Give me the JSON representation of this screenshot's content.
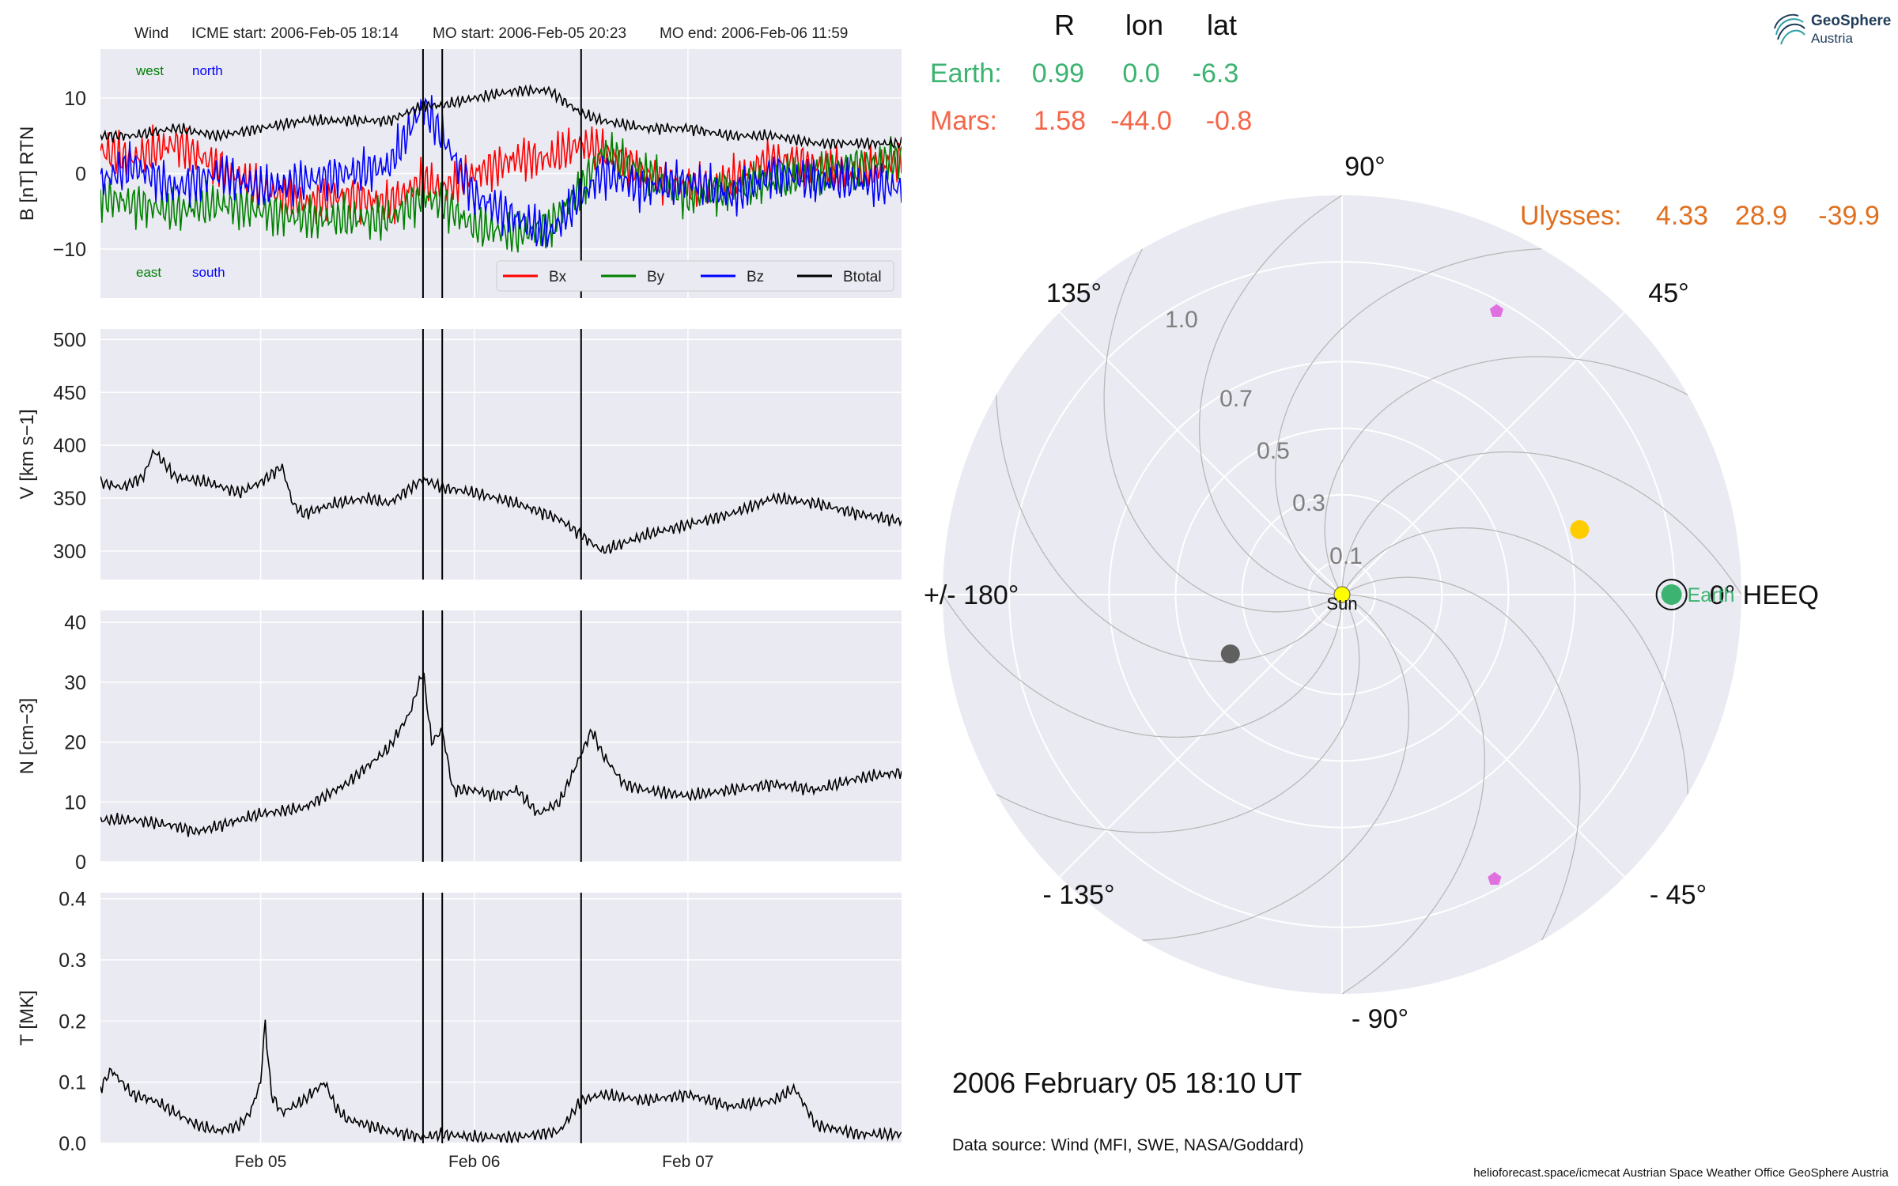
{
  "colors": {
    "panel_bg": "#eaeaf2",
    "grid": "#ffffff",
    "bx": "#ff0000",
    "by": "#008000",
    "bz": "#0000ff",
    "btotal": "#000000",
    "earth": "#3cb371",
    "mars": "#f4664a",
    "ulysses": "#e07020",
    "sun": "#ffff00",
    "polar_point_yellow": "#ffcc00",
    "polar_point_gray": "#606060",
    "polar_pentagon": "#e070e0",
    "spiral": "#b8b8b8",
    "polar_text_gray": "#7f7f7f"
  },
  "header": {
    "spacecraft": "Wind",
    "icme_start": "ICME start: 2006-Feb-05 18:14",
    "mo_start": "MO start: 2006-Feb-05 20:23",
    "mo_end": "MO end: 2006-Feb-06 11:59"
  },
  "xaxis": {
    "start_day": 4.25,
    "end_day": 8.0,
    "ticks": [
      5,
      6,
      7
    ],
    "tick_labels": [
      "Feb 05",
      "Feb 06",
      "Feb 07"
    ]
  },
  "event_lines": [
    5.76,
    5.85,
    6.5
  ],
  "chart_data": [
    {
      "type": "line",
      "ylabel": "B [nT] RTN",
      "ylim": [
        -16.5,
        16.5
      ],
      "yticks": [
        -10,
        0,
        10
      ],
      "ytick_labels": [
        "−10",
        "0",
        "10"
      ],
      "annotations": {
        "top_left": "west",
        "top_right": "north",
        "bottom_left": "east",
        "bottom_right": "south"
      },
      "legend": [
        "Bx",
        "By",
        "Bz",
        "Btotal"
      ],
      "legend_placement": "lower-right",
      "series": [
        {
          "name": "Bx",
          "color_key": "bx",
          "x": [
            4.25,
            4.4,
            4.6,
            4.8,
            5.0,
            5.2,
            5.4,
            5.6,
            5.76,
            5.85,
            6.0,
            6.2,
            6.35,
            6.5,
            6.6,
            6.8,
            7.0,
            7.2,
            7.4,
            7.6,
            7.8,
            8.0
          ],
          "y": [
            3,
            2,
            4,
            1,
            -2,
            -4,
            -3,
            -4,
            -1,
            -2,
            0,
            2,
            2,
            4,
            3,
            0,
            -2,
            -1,
            2,
            1,
            0,
            2
          ]
        },
        {
          "name": "By",
          "color_key": "by",
          "x": [
            4.25,
            4.4,
            4.6,
            4.8,
            5.0,
            5.2,
            5.4,
            5.6,
            5.76,
            5.85,
            6.0,
            6.2,
            6.35,
            6.5,
            6.6,
            6.8,
            7.0,
            7.2,
            7.4,
            7.6,
            7.8,
            8.0
          ],
          "y": [
            -3,
            -4,
            -5,
            -4,
            -5,
            -6,
            -6,
            -6,
            -3,
            -4,
            -7,
            -8,
            -7,
            -2,
            3,
            0,
            -3,
            -2,
            -1,
            0,
            1,
            2
          ]
        },
        {
          "name": "Bz",
          "color_key": "bz",
          "x": [
            4.25,
            4.4,
            4.6,
            4.8,
            5.0,
            5.2,
            5.4,
            5.6,
            5.76,
            5.85,
            6.0,
            6.2,
            6.35,
            6.5,
            6.6,
            6.8,
            7.0,
            7.2,
            7.4,
            7.6,
            7.8,
            8.0
          ],
          "y": [
            -1,
            1,
            -2,
            0,
            -2,
            -1,
            0,
            1,
            9,
            5,
            -3,
            -6,
            -8,
            -3,
            0,
            -2,
            -1,
            -3,
            0,
            -1,
            -1,
            -2
          ]
        },
        {
          "name": "Btotal",
          "color_key": "btotal",
          "x": [
            4.25,
            4.4,
            4.6,
            4.8,
            5.0,
            5.2,
            5.4,
            5.6,
            5.76,
            5.85,
            6.0,
            6.2,
            6.35,
            6.5,
            6.6,
            6.8,
            7.0,
            7.2,
            7.4,
            7.6,
            7.8,
            8.0
          ],
          "y": [
            5,
            5,
            6,
            5,
            6,
            7,
            7,
            7,
            9,
            9,
            10,
            11,
            11,
            8,
            7,
            6,
            6,
            5,
            5,
            4,
            4,
            4
          ]
        }
      ]
    },
    {
      "type": "line",
      "ylabel": "V [km s−1]",
      "ylim": [
        273,
        510
      ],
      "yticks": [
        300,
        350,
        400,
        450,
        500
      ],
      "ytick_labels": [
        "300",
        "350",
        "400",
        "450",
        "500"
      ],
      "series": [
        {
          "color_key": "btotal",
          "x": [
            4.25,
            4.35,
            4.45,
            4.5,
            4.6,
            4.75,
            4.9,
            5.0,
            5.1,
            5.15,
            5.2,
            5.35,
            5.5,
            5.6,
            5.76,
            5.85,
            6.0,
            6.2,
            6.4,
            6.5,
            6.6,
            6.8,
            7.0,
            7.2,
            7.4,
            7.6,
            7.8,
            8.0
          ],
          "y": [
            365,
            360,
            370,
            395,
            370,
            365,
            355,
            365,
            380,
            345,
            335,
            345,
            350,
            345,
            368,
            360,
            355,
            345,
            330,
            315,
            300,
            315,
            325,
            335,
            350,
            345,
            335,
            328
          ]
        }
      ]
    },
    {
      "type": "line",
      "ylabel": "N [cm−3]",
      "ylim": [
        0,
        42
      ],
      "yticks": [
        0,
        10,
        20,
        30,
        40
      ],
      "ytick_labels": [
        "0",
        "10",
        "20",
        "30",
        "40"
      ],
      "series": [
        {
          "color_key": "btotal",
          "x": [
            4.25,
            4.4,
            4.6,
            4.7,
            4.8,
            5.0,
            5.2,
            5.4,
            5.5,
            5.6,
            5.7,
            5.76,
            5.8,
            5.85,
            5.9,
            6.0,
            6.1,
            6.2,
            6.3,
            6.4,
            6.5,
            6.55,
            6.6,
            6.7,
            6.8,
            7.0,
            7.2,
            7.4,
            7.6,
            7.8,
            8.0
          ],
          "y": [
            7,
            7,
            6,
            5,
            6,
            8,
            9,
            13,
            16,
            19,
            25,
            32,
            20,
            22,
            12,
            12,
            11,
            12,
            8,
            10,
            18,
            22,
            18,
            13,
            12,
            11,
            12,
            13,
            12,
            14,
            15
          ]
        }
      ]
    },
    {
      "type": "line",
      "ylabel": "T [MK]",
      "xlabel": "",
      "ylim": [
        0,
        0.41
      ],
      "yticks": [
        0.0,
        0.1,
        0.2,
        0.3,
        0.4
      ],
      "ytick_labels": [
        "0.0",
        "0.1",
        "0.2",
        "0.3",
        "0.4"
      ],
      "series": [
        {
          "color_key": "btotal",
          "x": [
            4.25,
            4.3,
            4.4,
            4.5,
            4.6,
            4.7,
            4.8,
            4.9,
            4.95,
            5.0,
            5.02,
            5.05,
            5.1,
            5.2,
            5.3,
            5.35,
            5.4,
            5.5,
            5.6,
            5.76,
            5.85,
            6.0,
            6.2,
            6.4,
            6.5,
            6.6,
            6.8,
            7.0,
            7.2,
            7.4,
            7.5,
            7.6,
            7.8,
            8.0
          ],
          "y": [
            0.09,
            0.12,
            0.08,
            0.07,
            0.05,
            0.03,
            0.02,
            0.03,
            0.05,
            0.1,
            0.2,
            0.08,
            0.05,
            0.07,
            0.1,
            0.06,
            0.04,
            0.03,
            0.02,
            0.01,
            0.015,
            0.01,
            0.01,
            0.02,
            0.07,
            0.08,
            0.07,
            0.08,
            0.06,
            0.07,
            0.09,
            0.03,
            0.015,
            0.015
          ]
        }
      ]
    },
    {
      "type": "scatter",
      "subtype": "polar",
      "radial_ticks": [
        0.1,
        0.3,
        0.5,
        0.7,
        1.0
      ],
      "radial_tick_labels": [
        "0.1",
        "0.3",
        "0.5",
        "0.7",
        "1.0"
      ],
      "rmax": 1.2,
      "angle_labels": [
        {
          "deg": 0,
          "text": "0° HEEQ"
        },
        {
          "deg": 45,
          "text": "45°"
        },
        {
          "deg": 90,
          "text": "90°"
        },
        {
          "deg": 135,
          "text": "135°"
        },
        {
          "deg": 180,
          "text": "+/- 180°"
        },
        {
          "deg": -135,
          "text": "- 135°"
        },
        {
          "deg": -90,
          "text": "- 90°"
        },
        {
          "deg": -45,
          "text": "- 45°"
        }
      ],
      "points": [
        {
          "name": "Earth",
          "label": "Earth",
          "r": 0.99,
          "lon": 0.0,
          "color_key": "earth",
          "marker": "circle-ring"
        },
        {
          "name": "Sun",
          "label": "Sun",
          "r": 0.0,
          "lon": 0.0,
          "color_key": "sun",
          "marker": "sun"
        },
        {
          "r": 0.74,
          "lon": 15.3,
          "color_key": "polar_point_yellow",
          "marker": "circle"
        },
        {
          "r": 0.38,
          "lon": -152,
          "color_key": "polar_point_gray",
          "marker": "circle"
        },
        {
          "r": 0.97,
          "lon": 61.4,
          "color_key": "polar_pentagon",
          "marker": "pentagon"
        },
        {
          "r": 0.97,
          "lon": -61.8,
          "color_key": "polar_pentagon",
          "marker": "pentagon"
        }
      ]
    }
  ],
  "position_table": {
    "headers": [
      "R",
      "lon",
      "lat"
    ],
    "rows": [
      {
        "name": "Earth:",
        "r": "0.99",
        "lon": "0.0",
        "lat": "-6.3",
        "color_key": "earth"
      },
      {
        "name": "Mars:",
        "r": "1.58",
        "lon": "-44.0",
        "lat": "-0.8",
        "color_key": "mars"
      },
      {
        "name": "Ulysses:",
        "r": "4.33",
        "lon": "28.9",
        "lat": "-39.9",
        "color_key": "ulysses"
      }
    ]
  },
  "date_label": "2006 February 05  18:10 UT",
  "data_source": "Data source: Wind (MFI, SWE, NASA/Goddard)",
  "footer": "helioforecast.space/icmecat   Austrian Space Weather Office   GeoSphere Austria",
  "logo": {
    "name": "GeoSphere",
    "sub": "Austria"
  }
}
